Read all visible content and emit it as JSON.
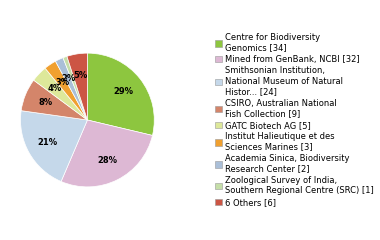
{
  "chart_data": {
    "type": "pie",
    "categories": [
      "Centre for Biodiversity\nGenomics [34]",
      "Mined from GenBank, NCBI [32]",
      "Smithsonian Institution,\nNational Museum of Natural\nHistor... [24]",
      "CSIRO, Australian National\nFish Collection [9]",
      "GATC Biotech AG [5]",
      "Institut Halieutique et des\nSciences Marines [3]",
      "Academia Sinica, Biodiversity\nResearch Center [2]",
      "Zoological Survey of India,\nSouthern Regional Centre (SRC) [1]",
      "6 Others [6]"
    ],
    "values": [
      29,
      28,
      21,
      8,
      4,
      3,
      2,
      1,
      5
    ],
    "value_labels": [
      "29%",
      "28%",
      "21%",
      "8%",
      "4%",
      "3%",
      "2%",
      null,
      "5%"
    ],
    "data_labels": true,
    "colors": [
      "#8dc63f",
      "#ddb8d4",
      "#c5d8ea",
      "#d4856a",
      "#dde89a",
      "#f0a030",
      "#aabfd8",
      "#c5dea8",
      "#cc5544"
    ],
    "legend": "right"
  }
}
